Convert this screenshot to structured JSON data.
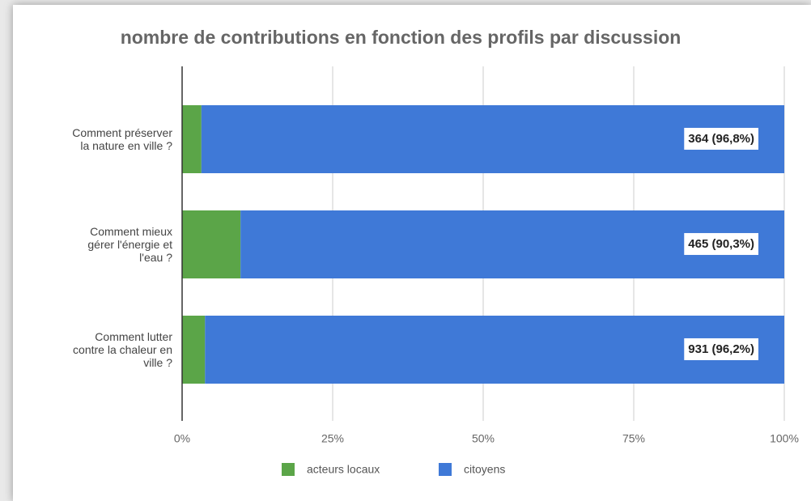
{
  "chart_data": {
    "type": "stacked_bar_horizontal",
    "title": "nombre de contributions en fonction des profils par discussion",
    "categories": [
      "Comment préserver\nla nature en ville ?",
      "Comment mieux\ngérer l'énergie et\nl'eau ?",
      "Comment lutter\ncontre la chaleur en\nville ?"
    ],
    "series": [
      {
        "name": "acteurs locaux",
        "color": "#5ba548",
        "values": [
          3.2,
          9.7,
          3.8
        ]
      },
      {
        "name": "citoyens",
        "color": "#3f79d7",
        "values": [
          96.8,
          90.3,
          96.2
        ],
        "value_labels": [
          "364 (96,8%)",
          "465 (90,3%)",
          "931 (96,2%)"
        ]
      }
    ],
    "xlim": [
      0,
      100
    ],
    "xticks": [
      {
        "value": 0,
        "label": "0%"
      },
      {
        "value": 25,
        "label": "25%"
      },
      {
        "value": 50,
        "label": "50%"
      },
      {
        "value": 75,
        "label": "75%"
      },
      {
        "value": 100,
        "label": "100%"
      }
    ],
    "grid": true,
    "legend": "bottom"
  }
}
